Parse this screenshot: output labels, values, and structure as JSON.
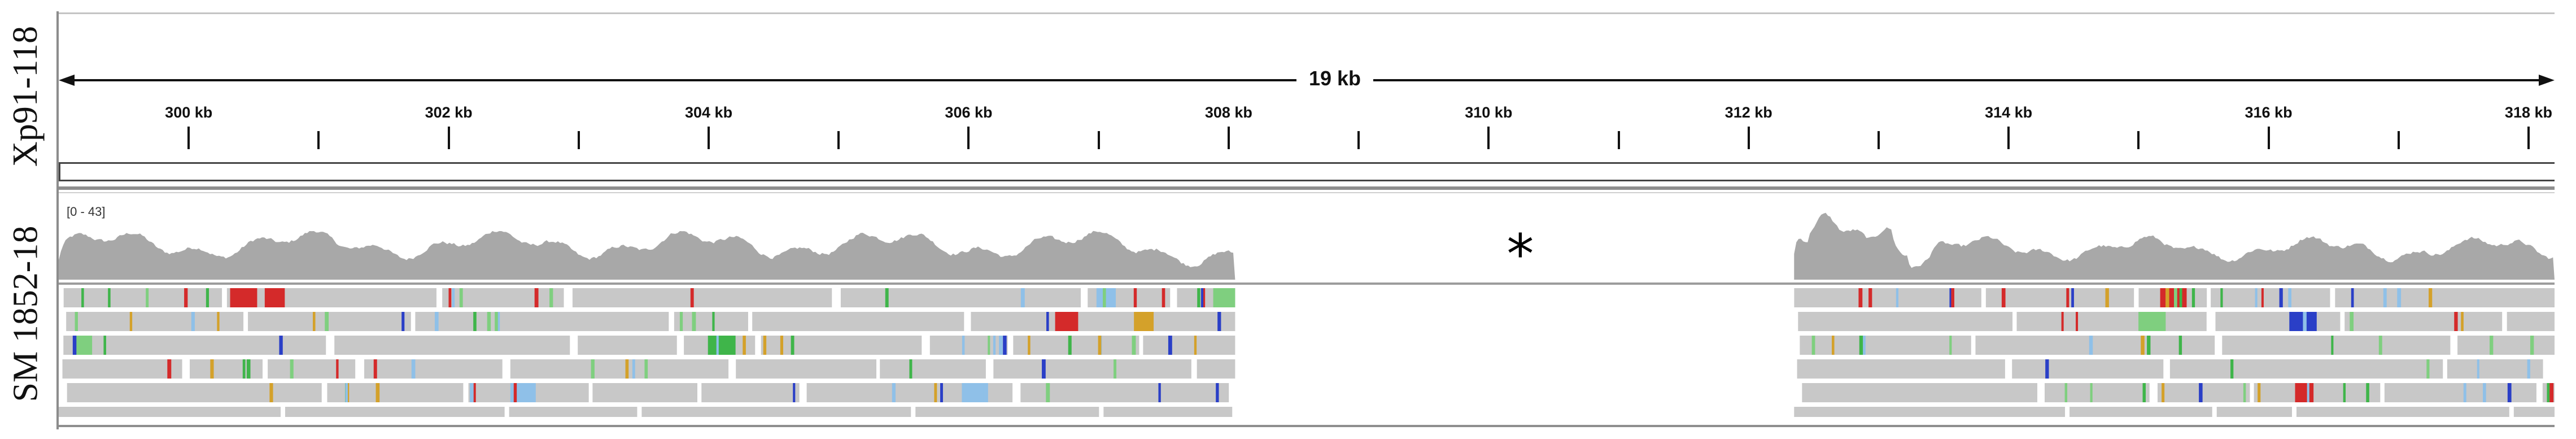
{
  "tracks": {
    "ruler_sample_label": "Xp91-118",
    "reads_sample_label": "SM 1852-18"
  },
  "ruler": {
    "span_label": "19 kb",
    "ticks": [
      {
        "label": "300 kb",
        "kb": 300
      },
      {
        "label": "302 kb",
        "kb": 302
      },
      {
        "label": "304 kb",
        "kb": 304
      },
      {
        "label": "306 kb",
        "kb": 306
      },
      {
        "label": "308 kb",
        "kb": 308
      },
      {
        "label": "310 kb",
        "kb": 310
      },
      {
        "label": "312 kb",
        "kb": 312
      },
      {
        "label": "314 kb",
        "kb": 314
      },
      {
        "label": "316 kb",
        "kb": 316
      },
      {
        "label": "318 kb",
        "kb": 318
      }
    ],
    "start_kb": 299.0,
    "end_kb": 318.2
  },
  "coverage": {
    "range_label": "[0 - 43]",
    "max": 43,
    "gap_start_kb": 308.05,
    "gap_end_kb": 312.35,
    "gap_marker": "*",
    "color": "#a8a8a8"
  },
  "colors": {
    "read": "#c8c8c8",
    "A": "#3fb54a",
    "C": "#2a3fc7",
    "G": "#d4a12a",
    "T": "#d42a2a",
    "soft": "#7fcf7f",
    "light_blue": "#8fc0e8"
  }
}
